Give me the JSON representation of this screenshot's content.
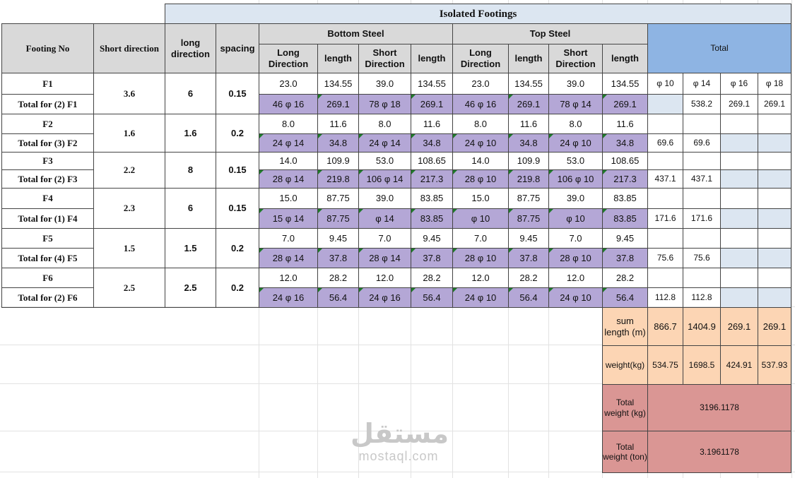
{
  "title": "Isolated Footings",
  "headers": {
    "footing_no": "Footing No",
    "short_direction": "Short direction",
    "long_direction": "long direction",
    "spacing": "spacing",
    "bottom_steel": "Bottom Steel",
    "top_steel": "Top Steel",
    "total": "Total",
    "long_dir": "Long Direction",
    "length": "length",
    "short_dir": "Short Direction",
    "phi": [
      "φ 10",
      "φ 14",
      "φ 16",
      "φ 18"
    ]
  },
  "footings": [
    {
      "name": "F1",
      "total_label": "Total for (2) F1",
      "short": "3.6",
      "long": "6",
      "spacing": "0.15",
      "top": [
        "23.0",
        "134.55",
        "39.0",
        "134.55",
        "23.0",
        "134.55",
        "39.0",
        "134.55",
        "φ 10",
        "φ 14",
        "φ 16",
        "φ 18"
      ],
      "bot": [
        "46 φ 16",
        "269.1",
        "78 φ 18",
        "269.1",
        "46 φ 16",
        "269.1",
        "78 φ 14",
        "269.1",
        "",
        "538.2",
        "269.1",
        "269.1"
      ]
    },
    {
      "name": "F2",
      "total_label": "Total for (3) F2",
      "short": "1.6",
      "long": "1.6",
      "spacing": "0.2",
      "top": [
        "8.0",
        "11.6",
        "8.0",
        "11.6",
        "8.0",
        "11.6",
        "8.0",
        "11.6",
        "",
        "",
        "",
        ""
      ],
      "bot": [
        "24 φ 14",
        "34.8",
        "24 φ 14",
        "34.8",
        "24 φ 10",
        "34.8",
        "24 φ 10",
        "34.8",
        "69.6",
        "69.6",
        "",
        ""
      ]
    },
    {
      "name": "F3",
      "total_label": "Total for (2) F3",
      "short": "2.2",
      "long": "8",
      "spacing": "0.15",
      "top": [
        "14.0",
        "109.9",
        "53.0",
        "108.65",
        "14.0",
        "109.9",
        "53.0",
        "108.65",
        "",
        "",
        "",
        ""
      ],
      "bot": [
        "28 φ 14",
        "219.8",
        "106 φ 14",
        "217.3",
        "28 φ 10",
        "219.8",
        "106 φ 10",
        "217.3",
        "437.1",
        "437.1",
        "",
        ""
      ]
    },
    {
      "name": "F4",
      "total_label": "Total for (1) F4",
      "short": "2.3",
      "long": "6",
      "spacing": "0.15",
      "top": [
        "15.0",
        "87.75",
        "39.0",
        "83.85",
        "15.0",
        "87.75",
        "39.0",
        "83.85",
        "",
        "",
        "",
        ""
      ],
      "bot": [
        "15 φ 14",
        "87.75",
        "φ 14",
        "83.85",
        "φ 10",
        "87.75",
        "φ 10",
        "83.85",
        "171.6",
        "171.6",
        "",
        ""
      ]
    },
    {
      "name": "F5",
      "total_label": "Total for (4) F5",
      "short": "1.5",
      "long": "1.5",
      "spacing": "0.2",
      "top": [
        "7.0",
        "9.45",
        "7.0",
        "9.45",
        "7.0",
        "9.45",
        "7.0",
        "9.45",
        "",
        "",
        "",
        ""
      ],
      "bot": [
        "28 φ 14",
        "37.8",
        "28 φ 14",
        "37.8",
        "28 φ 10",
        "37.8",
        "28 φ 10",
        "37.8",
        "75.6",
        "75.6",
        "",
        ""
      ]
    },
    {
      "name": "F6",
      "total_label": "Total for (2) F6",
      "short": "2.5",
      "long": "2.5",
      "spacing": "0.2",
      "top": [
        "12.0",
        "28.2",
        "12.0",
        "28.2",
        "12.0",
        "28.2",
        "12.0",
        "28.2",
        "",
        "",
        "",
        ""
      ],
      "bot": [
        "24 φ 16",
        "56.4",
        "24 φ 16",
        "56.4",
        "24 φ 10",
        "56.4",
        "24 φ 10",
        "56.4",
        "112.8",
        "112.8",
        "",
        ""
      ]
    }
  ],
  "summary": {
    "sum_length_label": "sum length (m)",
    "sum_length": [
      "866.7",
      "1404.9",
      "269.1",
      "269.1"
    ],
    "weight_label": "weight(kg)",
    "weight": [
      "534.75",
      "1698.5",
      "424.91",
      "537.93"
    ],
    "total_kg_label": "Total weight (kg)",
    "total_kg": "3196.1178",
    "total_ton_label": "Total weight (ton)",
    "total_ton": "3.1961178"
  },
  "watermark": {
    "arabic": "مستقل",
    "latin": "mostaql.com"
  },
  "colors": {
    "lavender": "#b4a7d6",
    "header_gray": "#d9d9d9",
    "light_blue": "#dce6f1",
    "total_blue": "#8eb4e3",
    "peach": "#fcd5b4",
    "rose": "#da9694",
    "marker_green": "#1f7a2a"
  }
}
